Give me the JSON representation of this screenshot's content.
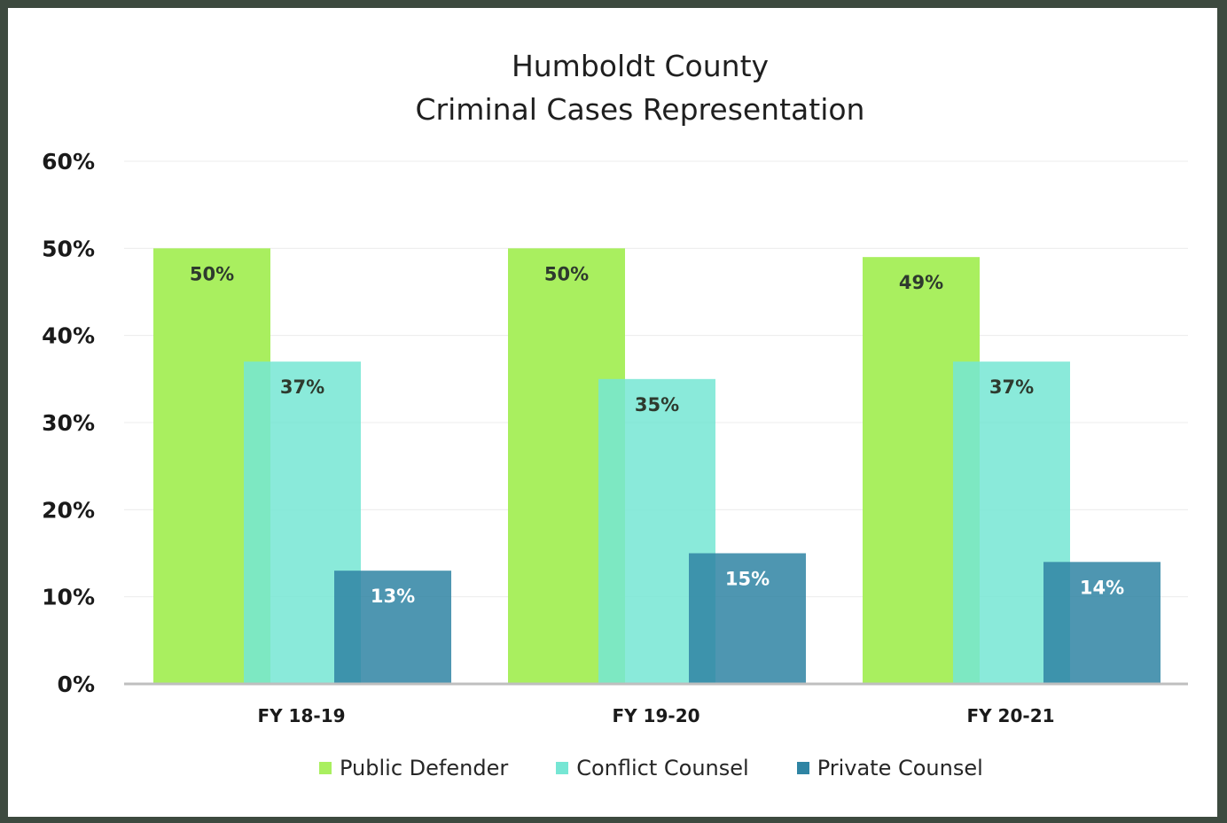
{
  "chart_data": {
    "type": "bar",
    "title": [
      "Humboldt County",
      "Criminal Cases Representation"
    ],
    "categories": [
      "FY 18-19",
      "FY 19-20",
      "FY 20-21"
    ],
    "series": [
      {
        "name": "Public Defender",
        "color": "#a9ef5f",
        "values": [
          50,
          50,
          49
        ],
        "labels": [
          "50%",
          "50%",
          "49%"
        ]
      },
      {
        "name": "Conflict Counsel",
        "color": "#76e6d4",
        "values": [
          37,
          35,
          37
        ],
        "labels": [
          "37%",
          "35%",
          "37%"
        ]
      },
      {
        "name": "Private Counsel",
        "color": "#2f84a3",
        "values": [
          13,
          15,
          14
        ],
        "labels": [
          "13%",
          "15%",
          "14%"
        ]
      }
    ],
    "ylim": [
      0,
      60
    ],
    "yticks": [
      "0%",
      "10%",
      "20%",
      "30%",
      "40%",
      "50%",
      "60%"
    ],
    "grid": true,
    "legend": "bottom"
  }
}
